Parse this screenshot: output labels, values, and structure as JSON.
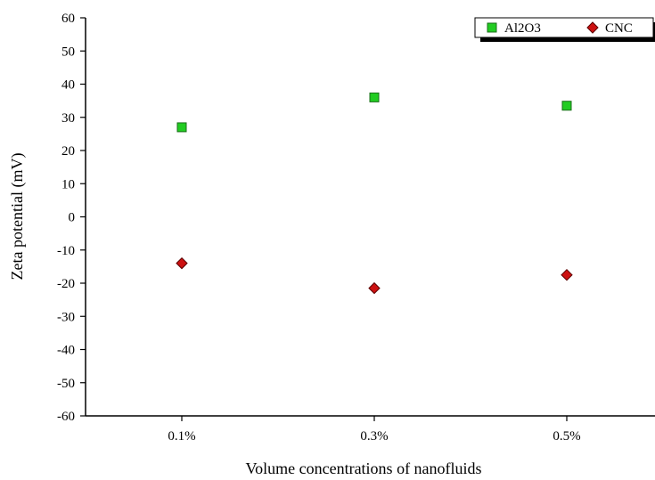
{
  "chart_data": {
    "type": "scatter",
    "xlabel": "Volume concentrations of nanofluids",
    "ylabel": "Zeta potential (mV)",
    "categories": [
      "0.1%",
      "0.3%",
      "0.5%"
    ],
    "ylim": [
      -60,
      60
    ],
    "yticks": [
      -60,
      -50,
      -40,
      -30,
      -20,
      -10,
      0,
      10,
      20,
      30,
      40,
      50,
      60
    ],
    "grid": false,
    "legend_position": "top-right",
    "series": [
      {
        "name": "Al2O3",
        "marker": "square",
        "color": "#22cc22",
        "values": [
          27,
          36,
          33.5
        ]
      },
      {
        "name": "CNC",
        "marker": "diamond",
        "color": "#cc1111",
        "values": [
          -14,
          -21.5,
          -17.5
        ]
      }
    ]
  }
}
